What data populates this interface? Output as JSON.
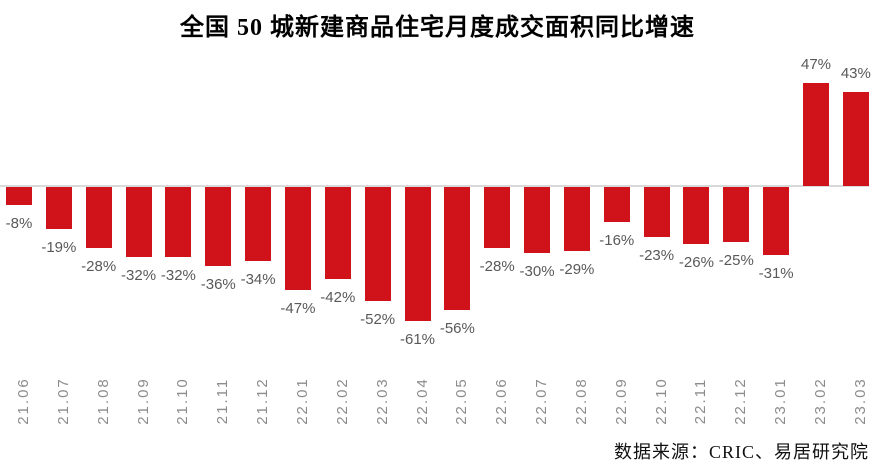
{
  "source": "数据来源：CRIC、易居研究院",
  "chart_data": {
    "type": "bar",
    "title": "全国 50 城新建商品住宅月度成交面积同比增速",
    "categories": [
      "21.06",
      "21.07",
      "21.08",
      "21.09",
      "21.10",
      "21.11",
      "21.12",
      "22.01",
      "22.02",
      "22.03",
      "22.04",
      "22.05",
      "22.06",
      "22.07",
      "22.08",
      "22.09",
      "22.10",
      "22.11",
      "22.12",
      "23.01",
      "23.02",
      "23.03"
    ],
    "values": [
      -8,
      -19,
      -28,
      -32,
      -32,
      -36,
      -34,
      -47,
      -42,
      -52,
      -61,
      -56,
      -28,
      -30,
      -29,
      -16,
      -23,
      -26,
      -25,
      -31,
      47,
      43
    ],
    "labels": [
      "-8%",
      "-19%",
      "-28%",
      "-32%",
      "-32%",
      "-36%",
      "-34%",
      "-47%",
      "-42%",
      "-52%",
      "-61%",
      "-56%",
      "-28%",
      "-30%",
      "-29%",
      "-16%",
      "-23%",
      "-26%",
      "-25%",
      "-31%",
      "47%",
      "43%"
    ],
    "unit": "%",
    "xlabel": "",
    "ylabel": "",
    "ylim": [
      -70,
      55
    ],
    "grid": false,
    "legend": false,
    "value_labels_position": "outside-end",
    "bar_color": "#d0121b",
    "axis_line_color": "#d9d9d9",
    "value_label_color": "#595959",
    "axis_label_color": "#8c8c8c"
  }
}
